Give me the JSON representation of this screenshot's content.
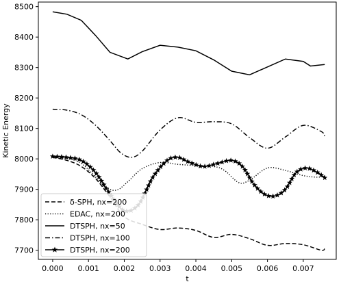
{
  "chart_data": {
    "type": "line",
    "xlabel": "t",
    "ylabel": "Kinetic Energy",
    "xlim": [
      -0.0004,
      0.00792
    ],
    "ylim": [
      7670,
      8515
    ],
    "xticks": [
      0.0,
      0.001,
      0.002,
      0.003,
      0.004,
      0.005,
      0.006,
      0.007
    ],
    "xtick_labels": [
      "0.000",
      "0.001",
      "0.002",
      "0.003",
      "0.004",
      "0.005",
      "0.006",
      "0.007"
    ],
    "yticks": [
      7700,
      7800,
      7900,
      8000,
      8100,
      8200,
      8300,
      8400,
      8500
    ],
    "ytick_labels": [
      "7700",
      "7800",
      "7900",
      "8000",
      "8100",
      "8200",
      "8300",
      "8400",
      "8500"
    ],
    "legend_position": "lower-left",
    "series": [
      {
        "name": "δ-SPH, nx=200",
        "style": "dashed",
        "x": [
          0.0,
          0.0004,
          0.0008,
          0.0012,
          0.0016,
          0.002,
          0.0025,
          0.003,
          0.0035,
          0.004,
          0.0045,
          0.005,
          0.0055,
          0.006,
          0.0065,
          0.007,
          0.0075,
          0.0076
        ],
        "y": [
          8005,
          7995,
          7975,
          7935,
          7875,
          7810,
          7785,
          7768,
          7773,
          7765,
          7742,
          7752,
          7738,
          7716,
          7722,
          7718,
          7700,
          7705
        ]
      },
      {
        "name": "EDAC, nx=200",
        "style": "dotted",
        "x": [
          0.0,
          0.0004,
          0.0008,
          0.0012,
          0.0015,
          0.0018,
          0.0021,
          0.0025,
          0.003,
          0.0035,
          0.004,
          0.0045,
          0.0048,
          0.0052,
          0.0055,
          0.006,
          0.0065,
          0.007,
          0.0074,
          0.0076
        ],
        "y": [
          8005,
          8002,
          7985,
          7940,
          7905,
          7898,
          7925,
          7968,
          7988,
          7982,
          7978,
          7975,
          7962,
          7922,
          7930,
          7970,
          7962,
          7945,
          7940,
          7944
        ]
      },
      {
        "name": "DTSPH, nx=50",
        "style": "solid",
        "x": [
          0.0,
          0.0004,
          0.0008,
          0.0012,
          0.0016,
          0.0021,
          0.0025,
          0.003,
          0.0035,
          0.004,
          0.0045,
          0.005,
          0.0055,
          0.006,
          0.0065,
          0.007,
          0.0072,
          0.0076
        ],
        "y": [
          8483,
          8475,
          8455,
          8405,
          8350,
          8328,
          8352,
          8373,
          8367,
          8355,
          8325,
          8288,
          8276,
          8302,
          8328,
          8320,
          8305,
          8310
        ]
      },
      {
        "name": "DTSPH, nx=100",
        "style": "dashdot",
        "x": [
          0.0,
          0.0004,
          0.0008,
          0.0012,
          0.0016,
          0.0019,
          0.0022,
          0.0025,
          0.003,
          0.0035,
          0.004,
          0.0045,
          0.005,
          0.0055,
          0.006,
          0.0065,
          0.007,
          0.0075,
          0.0076
        ],
        "y": [
          8163,
          8160,
          8145,
          8110,
          8060,
          8020,
          8005,
          8025,
          8095,
          8135,
          8120,
          8122,
          8115,
          8070,
          8035,
          8072,
          8110,
          8090,
          8075
        ]
      },
      {
        "name": "DTSPH, nx=200",
        "style": "solid-star",
        "x": [
          0.0,
          0.0004,
          0.0008,
          0.0012,
          0.0016,
          0.002,
          0.0024,
          0.0028,
          0.0032,
          0.0035,
          0.0038,
          0.0042,
          0.0046,
          0.005,
          0.0053,
          0.0056,
          0.0059,
          0.0062,
          0.0065,
          0.0068,
          0.0071,
          0.0074,
          0.0076
        ],
        "y": [
          8008,
          8005,
          7995,
          7955,
          7885,
          7830,
          7850,
          7940,
          7995,
          8005,
          7990,
          7975,
          7985,
          7995,
          7975,
          7920,
          7885,
          7878,
          7900,
          7955,
          7970,
          7955,
          7938
        ]
      }
    ]
  }
}
